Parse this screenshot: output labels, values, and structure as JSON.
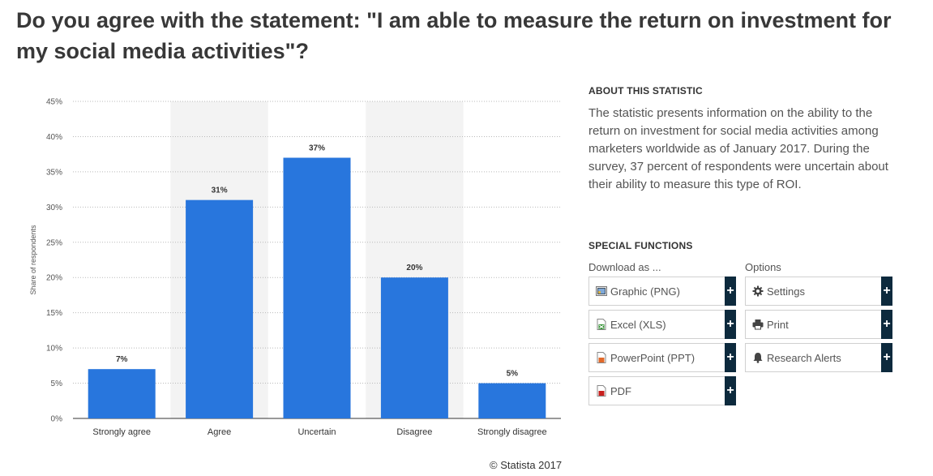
{
  "title": "Do you agree with the statement: \"I am able to measure the return on investment for my social media activities\"?",
  "about": {
    "heading": "ABOUT THIS STATISTIC",
    "text": "The statistic presents information on the ability to the return on investment for social media activities among marketers worldwide as of January 2017. During the survey, 37 percent of respondents were uncertain about their ability to measure this type of ROI."
  },
  "special": {
    "heading": "SPECIAL FUNCTIONS",
    "download_title": "Download as ...",
    "options_title": "Options",
    "downloads": [
      {
        "label": "Graphic (PNG)",
        "icon": "png-file-icon"
      },
      {
        "label": "Excel (XLS)",
        "icon": "excel-file-icon"
      },
      {
        "label": "PowerPoint (PPT)",
        "icon": "powerpoint-file-icon"
      },
      {
        "label": "PDF",
        "icon": "pdf-file-icon"
      }
    ],
    "options": [
      {
        "label": "Settings",
        "icon": "gear-icon"
      },
      {
        "label": "Print",
        "icon": "printer-icon"
      },
      {
        "label": "Research Alerts",
        "icon": "bell-icon"
      }
    ],
    "plus": "+"
  },
  "copyright": "© Statista 2017",
  "colors": {
    "bar": "#2876dd",
    "band": "#f3f3f3",
    "plus_bg": "#0d2a3d"
  },
  "chart_data": {
    "type": "bar",
    "categories": [
      "Strongly agree",
      "Agree",
      "Uncertain",
      "Disagree",
      "Strongly disagree"
    ],
    "values": [
      7,
      31,
      37,
      20,
      5
    ],
    "value_labels": [
      "7%",
      "31%",
      "37%",
      "20%",
      "5%"
    ],
    "ylabel": "Share of respondents",
    "xlabel": "",
    "ylim": [
      0,
      45
    ],
    "yticks": [
      0,
      5,
      10,
      15,
      20,
      25,
      30,
      35,
      40,
      45
    ],
    "ytick_labels": [
      "0%",
      "5%",
      "10%",
      "15%",
      "20%",
      "25%",
      "30%",
      "35%",
      "40%",
      "45%"
    ],
    "grid": true
  }
}
